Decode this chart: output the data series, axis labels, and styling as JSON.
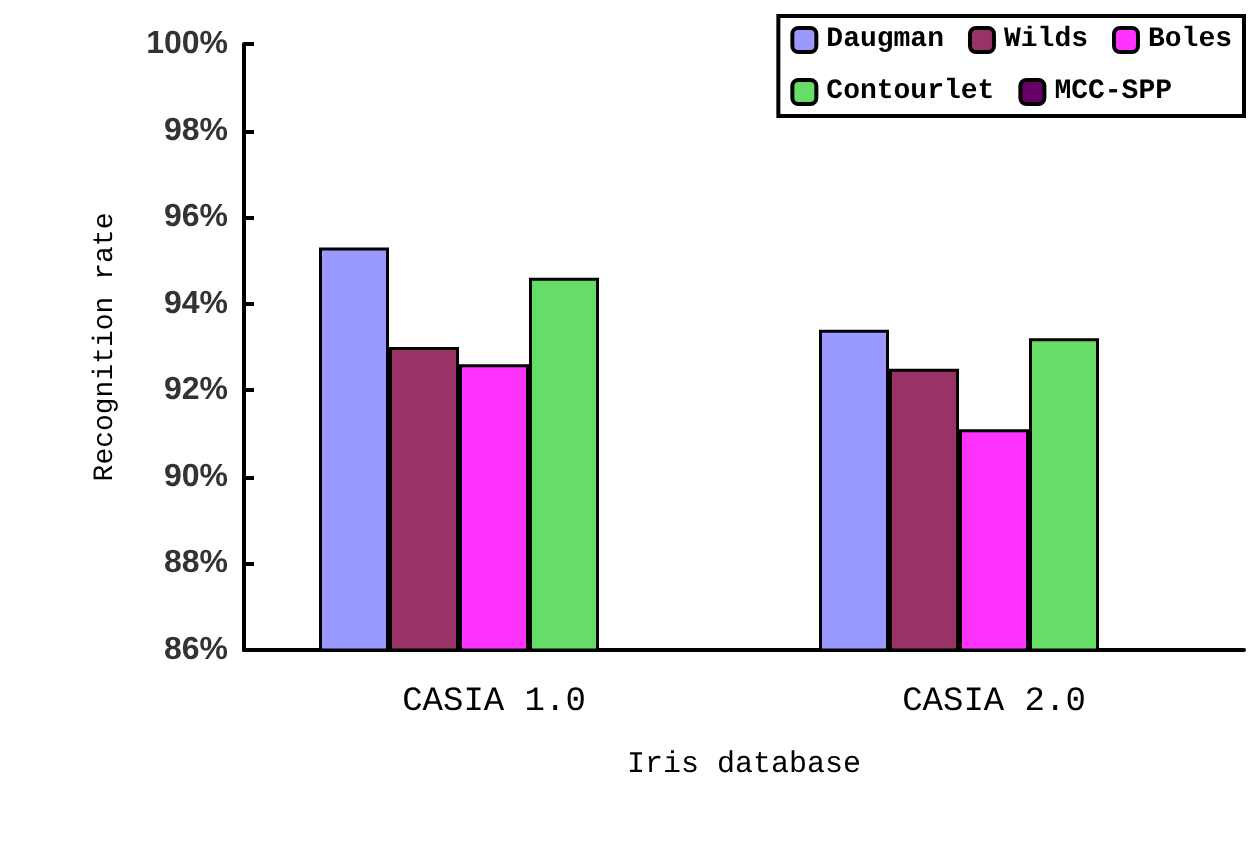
{
  "chart_data": {
    "type": "bar",
    "xlabel": "Iris database",
    "ylabel": "Recognition rate",
    "categories": [
      "CASIA 1.0",
      "CASIA 2.0"
    ],
    "series": [
      {
        "name": "Daugman",
        "color": "#9999ff",
        "values": [
          95.3,
          93.4
        ]
      },
      {
        "name": "Wilds",
        "color": "#993366",
        "values": [
          93.0,
          92.5
        ]
      },
      {
        "name": "Boles",
        "color": "#ff33ff",
        "values": [
          92.6,
          91.1
        ]
      },
      {
        "name": "Contourlet",
        "color": "#66dd66",
        "values": [
          94.6,
          93.2
        ]
      },
      {
        "name": "MCC-SPP",
        "color": "#660066",
        "values": [
          null,
          null
        ]
      }
    ],
    "ylim": [
      86,
      100
    ],
    "yticks": [
      {
        "value": 86,
        "label": "86%"
      },
      {
        "value": 88,
        "label": "88%"
      },
      {
        "value": 90,
        "label": "90%"
      },
      {
        "value": 92,
        "label": "92%"
      },
      {
        "value": 94,
        "label": "94%"
      },
      {
        "value": 96,
        "label": "96%"
      },
      {
        "value": 98,
        "label": "98%"
      },
      {
        "value": 100,
        "label": "100%"
      }
    ],
    "grid": false,
    "legend": "top right"
  }
}
